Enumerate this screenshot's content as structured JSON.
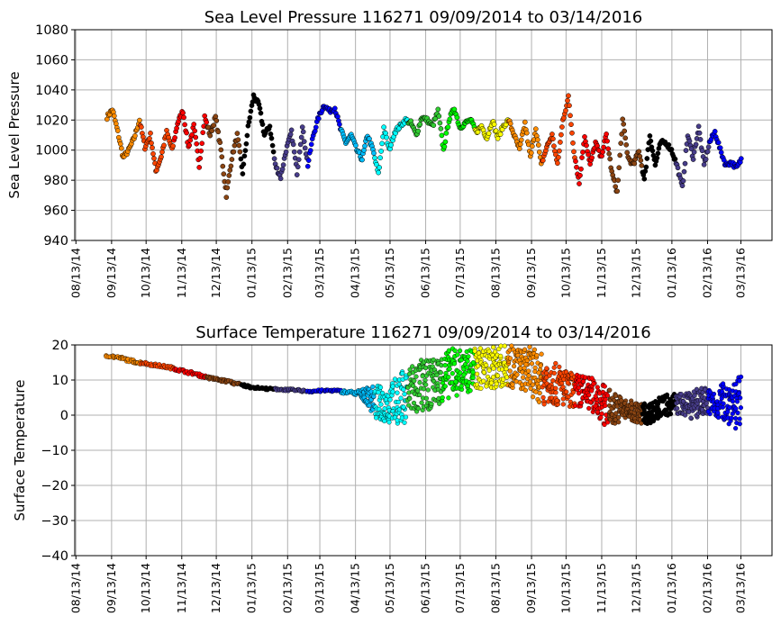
{
  "chart_data": [
    {
      "type": "scatter",
      "title": "Sea Level Pressure 116271  09/09/2014 to 03/14/2016",
      "xlabel": "",
      "ylabel": "Sea Level Pressure",
      "ylim": [
        940,
        1080
      ],
      "yticks": [
        940,
        960,
        980,
        1000,
        1020,
        1040,
        1060,
        1080
      ],
      "xlim": [
        "2014-08-12",
        "2016-04-09"
      ],
      "xticks": [
        "08/13/14",
        "09/13/14",
        "10/13/14",
        "11/13/14",
        "12/13/14",
        "01/13/15",
        "02/13/15",
        "03/13/15",
        "04/13/15",
        "05/13/15",
        "06/13/15",
        "07/13/15",
        "08/13/15",
        "09/13/15",
        "10/13/15",
        "11/13/15",
        "12/13/15",
        "01/13/16",
        "02/13/16",
        "03/13/16"
      ],
      "grid": true,
      "start_date": "2014-09-09",
      "end_date": "2016-03-14",
      "segment_colors": [
        "#ff8c00",
        "#ff4500",
        "#ff0000",
        "#8b4513",
        "#000000",
        "#483d8b",
        "#0000ff",
        "#00bfff",
        "#00ffff",
        "#32cd32",
        "#00ff00",
        "#ffff00",
        "#ff8c00",
        "#ff4500",
        "#ff0000",
        "#8b4513",
        "#000000",
        "#483d8b",
        "#0000ff"
      ],
      "values": [
        1022,
        1027,
        1012,
        995,
        1000,
        1008,
        1020,
        1002,
        1010,
        986,
        996,
        1012,
        1000,
        1018,
        1026,
        1002,
        1016,
        990,
        1022,
        1010,
        1022,
        1000,
        970,
        995,
        1010,
        985,
        1015,
        1036,
        1030,
        1010,
        1016,
        990,
        982,
        1000,
        1012,
        985,
        1015,
        990,
        1010,
        1022,
        1030,
        1026,
        1028,
        1014,
        1005,
        1010,
        1000,
        994,
        1010,
        1000,
        984,
        1015,
        1000,
        1012,
        1016,
        1020,
        1018,
        1010,
        1022,
        1020,
        1016,
        1026,
        1000,
        1020,
        1028,
        1015,
        1018,
        1020,
        1012,
        1016,
        1008,
        1020,
        1008,
        1016,
        1020,
        1010,
        1000,
        1018,
        995,
        1015,
        990,
        1002,
        1010,
        990,
        1020,
        1035,
        1000,
        978,
        1010,
        990,
        1005,
        995,
        1010,
        985,
        972,
        1020,
        995,
        990,
        1000,
        980,
        1010,
        990,
        1005,
        1005,
        1000,
        990,
        975,
        1010,
        995,
        1015,
        990,
        1005,
        1012,
        1000,
        990,
        992,
        988,
        995
      ]
    },
    {
      "type": "scatter",
      "title": "Surface Temperature 116271  09/09/2014 to 03/14/2016",
      "xlabel": "",
      "ylabel": "Surface Temperature",
      "ylim": [
        -40,
        20
      ],
      "yticks": [
        -40,
        -30,
        -20,
        -10,
        0,
        10,
        20
      ],
      "xlim": [
        "2014-08-12",
        "2016-04-09"
      ],
      "xticks": [
        "08/13/14",
        "09/13/14",
        "10/13/14",
        "11/13/14",
        "12/13/14",
        "01/13/15",
        "02/13/15",
        "03/13/15",
        "04/13/15",
        "05/13/15",
        "06/13/15",
        "07/13/15",
        "08/13/15",
        "09/13/15",
        "10/13/15",
        "11/13/15",
        "12/13/15",
        "01/13/16",
        "02/13/16",
        "03/13/16"
      ],
      "grid": true,
      "start_date": "2014-09-09",
      "end_date": "2016-03-14",
      "segment_colors": [
        "#ff8c00",
        "#ff4500",
        "#ff0000",
        "#8b4513",
        "#000000",
        "#483d8b",
        "#0000ff",
        "#00bfff",
        "#00ffff",
        "#32cd32",
        "#00ff00",
        "#ffff00",
        "#ff8c00",
        "#ff4500",
        "#ff0000",
        "#8b4513",
        "#000000",
        "#483d8b",
        "#0000ff"
      ],
      "mean": [
        17,
        16.6,
        16.2,
        15.6,
        15.1,
        14.8,
        14.5,
        14.1,
        13.8,
        13.4,
        12.8,
        12.3,
        11.8,
        11.2,
        10.6,
        10.2,
        9.8,
        9.4,
        8.8,
        8.3,
        7.9,
        7.7,
        7.5,
        7.4,
        7.3,
        7.2,
        7.1,
        6.9,
        6.8,
        6.9,
        7.0,
        7.0,
        6.8,
        6.5,
        6.3,
        6.0,
        5.0,
        3.5,
        3.0,
        3.5,
        4.5,
        6.0,
        7.5,
        8.0,
        8.5,
        9.5,
        11.0,
        12.0,
        12.5,
        12.0,
        13.0,
        13.5,
        13.0,
        13.5,
        14.0,
        14.0,
        13.5,
        13.0,
        12.5,
        11.0,
        10.0,
        9.0,
        8.5,
        7.5,
        7.0,
        6.5,
        6.0,
        5.5,
        3.0,
        2.0,
        2.0,
        1.5,
        1.0,
        0.5,
        0.5,
        1.0,
        2.5,
        3.0,
        3.5,
        3.0,
        3.0,
        3.5,
        4.0,
        3.0,
        3.5,
        4.0,
        3.0,
        3.5
      ],
      "spread": [
        0.4,
        0.4,
        0.4,
        0.4,
        0.4,
        0.4,
        0.4,
        0.4,
        0.4,
        0.4,
        0.4,
        0.4,
        0.4,
        0.4,
        0.4,
        0.4,
        0.4,
        0.4,
        0.4,
        0.4,
        0.3,
        0.3,
        0.3,
        0.3,
        0.3,
        0.3,
        0.3,
        0.3,
        0.3,
        0.3,
        0.3,
        0.3,
        0.4,
        0.5,
        0.6,
        1.5,
        3,
        5,
        5,
        6,
        7,
        8,
        8,
        8,
        7,
        7,
        7,
        7,
        7,
        6,
        6,
        6,
        6,
        6,
        6,
        6,
        6,
        6,
        7,
        7,
        7,
        6,
        6,
        5,
        5,
        5,
        5,
        5,
        6,
        5,
        4,
        3,
        3,
        3,
        3,
        3,
        3,
        3,
        3,
        3,
        4,
        4,
        4,
        4,
        5,
        6,
        7,
        8
      ]
    }
  ]
}
